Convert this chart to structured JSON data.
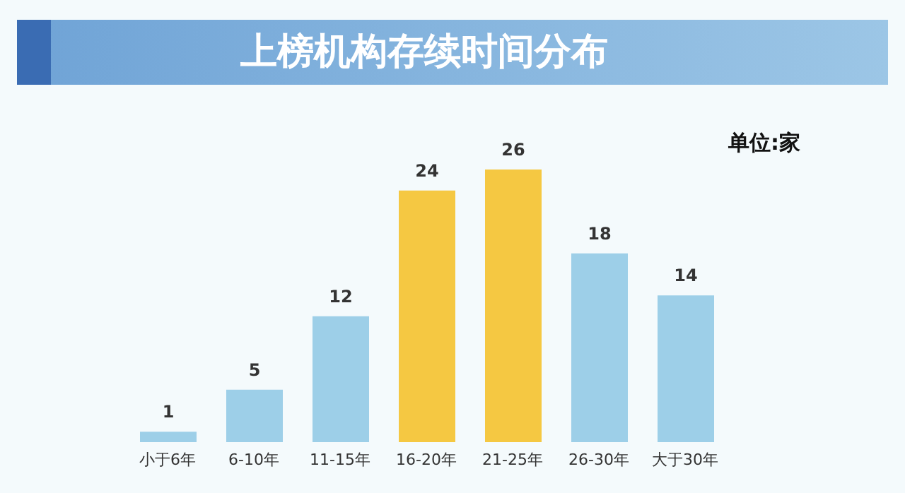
{
  "chart_data": {
    "type": "bar",
    "title": "上榜机构存续时间分布",
    "annotations": [
      "单位:家"
    ],
    "categories": [
      "小于6年",
      "6-10年",
      "11-15年",
      "16-20年",
      "21-25年",
      "26-30年",
      "大于30年"
    ],
    "values": [
      1,
      5,
      12,
      24,
      26,
      18,
      14
    ],
    "colors": [
      "#9dcfe8",
      "#9dcfe8",
      "#9dcfe8",
      "#f5c842",
      "#f5c842",
      "#9dcfe8",
      "#9dcfe8"
    ],
    "data_labels": true
  }
}
